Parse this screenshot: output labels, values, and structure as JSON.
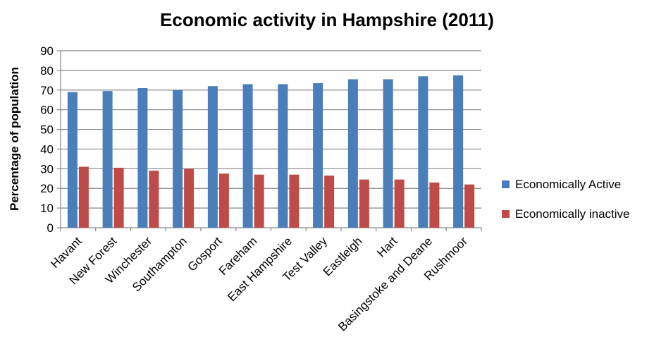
{
  "chart_data": {
    "type": "bar",
    "title": "Economic activity in Hampshire (2011)",
    "xlabel": "",
    "ylabel": "Percentage of population",
    "ylim": [
      0,
      90
    ],
    "yticks": [
      0,
      10,
      20,
      30,
      40,
      50,
      60,
      70,
      80,
      90
    ],
    "grid": true,
    "legend_position": "right",
    "categories": [
      "Havant",
      "New Forest",
      "Winchester",
      "Southampton",
      "Gosport",
      "Fareham",
      "East Hampshire",
      "Test Valley",
      "Eastleigh",
      "Hart",
      "Basingstoke and Deane",
      "Rushmoor"
    ],
    "series": [
      {
        "name": "Economically Active",
        "color": "#4A7EBB",
        "values": [
          69,
          69.5,
          71,
          70,
          72,
          73,
          73,
          73.5,
          75.5,
          75.5,
          77,
          77.5
        ]
      },
      {
        "name": "Economically inactive",
        "color": "#BE4B48",
        "values": [
          31,
          30.5,
          29,
          30,
          27.5,
          27,
          27,
          26.5,
          24.5,
          24.5,
          23,
          22
        ]
      }
    ]
  }
}
